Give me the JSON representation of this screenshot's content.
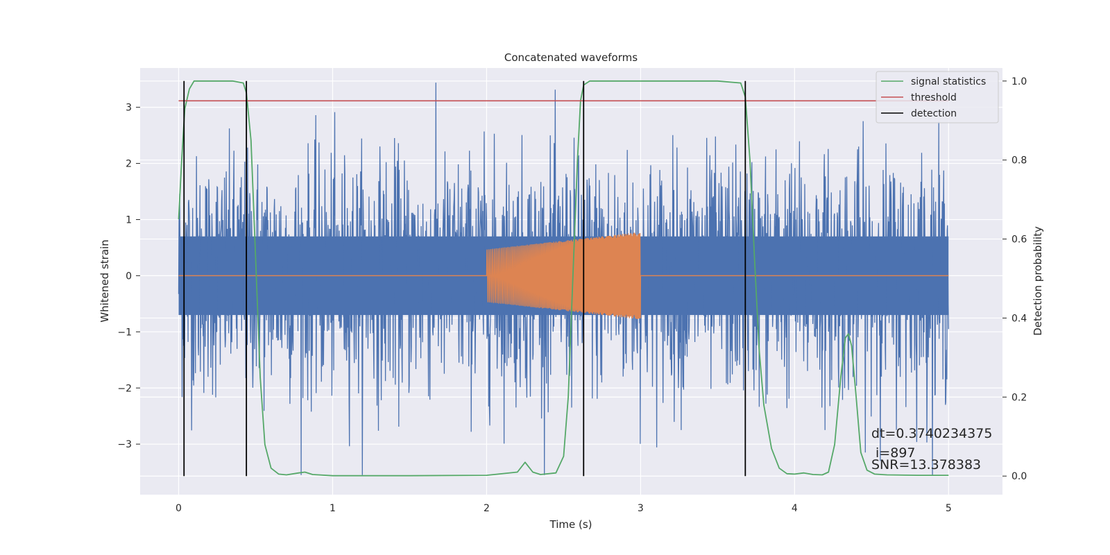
{
  "chart_data": {
    "type": "line",
    "title": "Concatenated waveforms",
    "xlabel": "Time (s)",
    "ylabel_left": "Whitened strain",
    "ylabel_right": "Detection probability",
    "xlim": [
      -0.25,
      5.35
    ],
    "ylim_left": [
      -3.9,
      3.7
    ],
    "ylim_right": [
      -0.047,
      1.033
    ],
    "x_ticks": [
      0,
      1,
      2,
      3,
      4,
      5
    ],
    "x_tick_labels": [
      "0",
      "1",
      "2",
      "3",
      "4",
      "5"
    ],
    "y_left_ticks": [
      -3,
      -2,
      -1,
      0,
      1,
      2,
      3
    ],
    "y_left_tick_labels": [
      "−3",
      "−2",
      "−1",
      "0",
      "1",
      "2",
      "3"
    ],
    "y_right_ticks": [
      0.0,
      0.2,
      0.4,
      0.6,
      0.8,
      1.0
    ],
    "y_right_tick_labels": [
      "0.0",
      "0.2",
      "0.4",
      "0.6",
      "0.8",
      "1.0"
    ],
    "grid": true,
    "background": "#eaeaf2",
    "legend_position": "top-right",
    "series": [
      {
        "name": "",
        "axis": "left",
        "kind": "noise",
        "color": "#4c72b0",
        "x_range": [
          0,
          5
        ],
        "core_amplitude": 0.7,
        "approx_peak_range": [
          -3.55,
          3.55
        ]
      },
      {
        "name": "",
        "axis": "left",
        "kind": "chirp",
        "color": "#dd8452",
        "x_range": [
          0,
          5
        ],
        "chirp_start": 2.0,
        "chirp_end": 3.0,
        "amplitude_start": 0.47,
        "amplitude_end": 0.78
      },
      {
        "name": "signal statistics",
        "axis": "right",
        "color": "#55a868",
        "x": [
          0.0,
          0.02,
          0.04,
          0.07,
          0.1,
          0.15,
          0.25,
          0.35,
          0.42,
          0.44,
          0.47,
          0.5,
          0.53,
          0.56,
          0.6,
          0.65,
          0.7,
          0.78,
          0.82,
          0.87,
          1.0,
          1.5,
          2.0,
          2.2,
          2.25,
          2.3,
          2.35,
          2.45,
          2.5,
          2.53,
          2.56,
          2.59,
          2.61,
          2.63,
          2.67,
          2.75,
          3.0,
          3.5,
          3.65,
          3.68,
          3.71,
          3.74,
          3.77,
          3.8,
          3.85,
          3.9,
          3.95,
          4.0,
          4.06,
          4.12,
          4.18,
          4.22,
          4.26,
          4.3,
          4.33,
          4.35,
          4.37,
          4.4,
          4.43,
          4.47,
          4.52,
          4.6,
          4.8,
          5.0
        ],
        "y": [
          0.65,
          0.8,
          0.93,
          0.98,
          1.0,
          1.0,
          1.0,
          1.0,
          0.995,
          0.97,
          0.85,
          0.55,
          0.25,
          0.08,
          0.02,
          0.005,
          0.003,
          0.008,
          0.01,
          0.004,
          0.001,
          0.001,
          0.002,
          0.01,
          0.035,
          0.01,
          0.004,
          0.008,
          0.05,
          0.2,
          0.5,
          0.8,
          0.95,
          0.99,
          1.0,
          1.0,
          1.0,
          1.0,
          0.995,
          0.96,
          0.8,
          0.55,
          0.32,
          0.18,
          0.07,
          0.02,
          0.006,
          0.005,
          0.008,
          0.004,
          0.003,
          0.01,
          0.08,
          0.25,
          0.35,
          0.36,
          0.33,
          0.2,
          0.06,
          0.015,
          0.005,
          0.003,
          0.002,
          0.002
        ]
      },
      {
        "name": "threshold",
        "axis": "right",
        "color": "#c44e52",
        "x": [
          0,
          5
        ],
        "y": [
          0.95,
          0.95
        ]
      },
      {
        "name": "detection",
        "axis": "right",
        "color": "#000000",
        "vlines": [
          0.035,
          0.44,
          2.63,
          3.68
        ],
        "y_range": [
          0,
          1
        ]
      }
    ],
    "annotations": [
      {
        "text": "dt=0.3740234375",
        "x": 4.5,
        "y_right": 0.095
      },
      {
        "text": " i=897",
        "x": 4.5,
        "y_right": 0.048
      },
      {
        "text": "SNR=13.378383",
        "x": 4.5,
        "y_right": 0.015
      }
    ]
  }
}
